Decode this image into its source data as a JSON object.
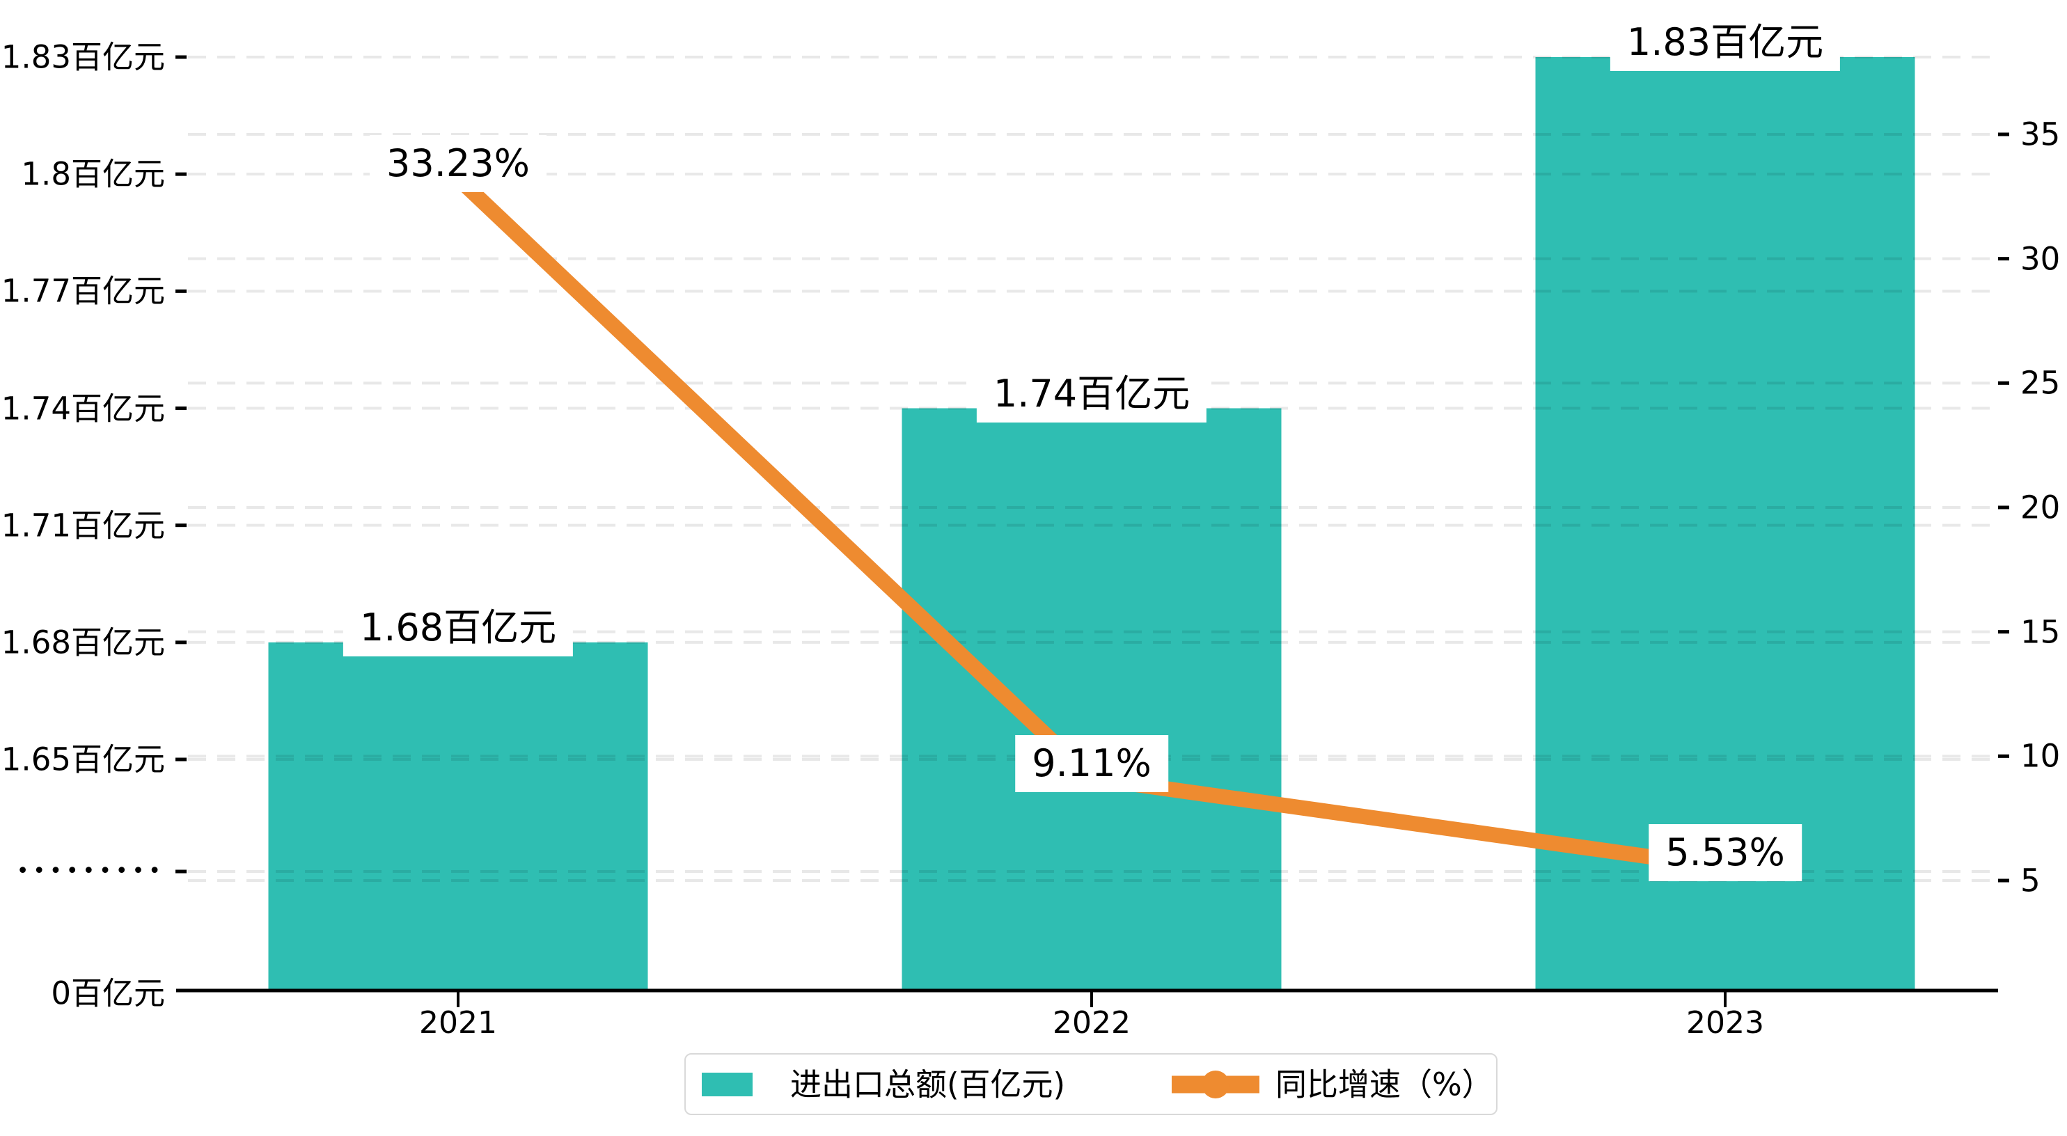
{
  "chart_data": {
    "type": "combo-bar-line",
    "categories": [
      "2021",
      "2022",
      "2023"
    ],
    "series": [
      {
        "name": "进出口总额(百亿元)",
        "type": "bar",
        "axis": "left",
        "unit": "百亿元",
        "color": "#2FBEB2",
        "values": [
          1.68,
          1.74,
          1.83
        ],
        "data_labels": [
          "1.68百亿元",
          "1.74百亿元",
          "1.83百亿元"
        ]
      },
      {
        "name": "同比增速（%）",
        "type": "line",
        "axis": "right",
        "unit": "%",
        "color": "#EE8B30",
        "values": [
          33.23,
          9.11,
          5.53
        ],
        "data_labels": [
          "33.23%",
          "9.11%",
          "5.53%"
        ]
      }
    ],
    "left_axis": {
      "tick_labels": [
        "1.83百亿元",
        "1.8百亿元",
        "1.77百亿元",
        "1.74百亿元",
        "1.71百亿元",
        "1.68百亿元",
        "1.65百亿元",
        "•••••••••",
        "0百亿元"
      ],
      "tick_values": [
        1.83,
        1.8,
        1.77,
        1.74,
        1.71,
        1.68,
        1.65,
        null,
        0
      ],
      "has_axis_break": true,
      "range": [
        1.65,
        1.86
      ]
    },
    "right_axis": {
      "tick_labels": [
        "35",
        "30",
        "25",
        "20",
        "15",
        "10",
        "5"
      ],
      "tick_values": [
        35,
        30,
        25,
        20,
        15,
        10,
        5
      ]
    },
    "grid": "dashed",
    "legend_position": "bottom"
  },
  "legend": {
    "bar_label": "进出口总额(百亿元)",
    "line_label": "同比增速（%）"
  },
  "colors": {
    "bar": "#2FBEB2",
    "line": "#EE8B30",
    "grid": "rgba(0,0,0,0.09)",
    "axis": "#000000",
    "legend_border": "#D9D9D9",
    "label_bg": "#FFFFFF",
    "text": "#000000"
  }
}
